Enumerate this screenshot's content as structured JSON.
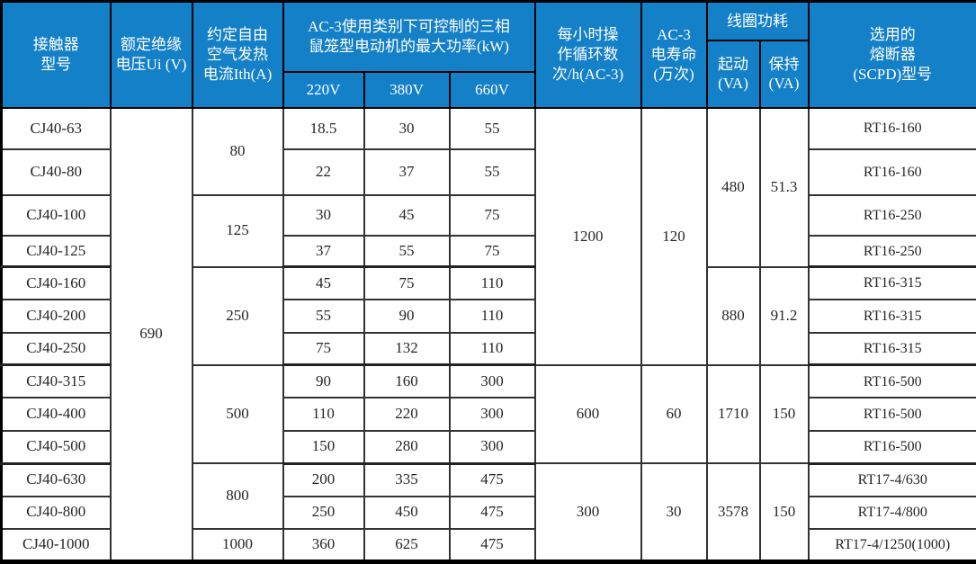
{
  "colors": {
    "header_bg": "#1480c8",
    "header_text": "#ffffff",
    "body_text": "#262626",
    "border": "#333333"
  },
  "header": {
    "model": "接触器\n型号",
    "insulation_voltage": "额定绝缘\n电压Ui (V)",
    "thermal_current": "约定自由\n空气发热\n电流Ith(A)",
    "ac3_power": "AC-3使用类别下可控制的三相\n鼠笼型电动机的最大功率(kW)",
    "v220": "220V",
    "v380": "380V",
    "v660": "660V",
    "cycles": "每小时操\n作循环数\n次/h(AC-3)",
    "life": "AC-3\n电寿命\n(万次)",
    "coil": "线圈功耗",
    "coil_start": "起动\n(VA)",
    "coil_hold": "保持\n(VA)",
    "fuse": "选用的\n熔断器\n(SCPD)型号"
  },
  "insulation_voltage_value": "690",
  "ith_groups": [
    "80",
    "125",
    "250",
    "500",
    "800",
    "1000"
  ],
  "cycles_groups": [
    "1200",
    "600",
    "300"
  ],
  "life_groups": [
    "120",
    "60",
    "30"
  ],
  "start_groups": [
    "480",
    "880",
    "1710",
    "3578"
  ],
  "hold_groups": [
    "51.3",
    "91.2",
    "150",
    "150"
  ],
  "rows": [
    {
      "model": "CJ40-63",
      "p220": "18.5",
      "p380": "30",
      "p660": "55",
      "fuse": "RT16-160"
    },
    {
      "model": "CJ40-80",
      "p220": "22",
      "p380": "37",
      "p660": "55",
      "fuse": "RT16-160"
    },
    {
      "model": "CJ40-100",
      "p220": "30",
      "p380": "45",
      "p660": "75",
      "fuse": "RT16-250"
    },
    {
      "model": "CJ40-125",
      "p220": "37",
      "p380": "55",
      "p660": "75",
      "fuse": "RT16-250"
    },
    {
      "model": "CJ40-160",
      "p220": "45",
      "p380": "75",
      "p660": "110",
      "fuse": "RT16-315"
    },
    {
      "model": "CJ40-200",
      "p220": "55",
      "p380": "90",
      "p660": "110",
      "fuse": "RT16-315"
    },
    {
      "model": "CJ40-250",
      "p220": "75",
      "p380": "132",
      "p660": "110",
      "fuse": "RT16-315"
    },
    {
      "model": "CJ40-315",
      "p220": "90",
      "p380": "160",
      "p660": "300",
      "fuse": "RT16-500"
    },
    {
      "model": "CJ40-400",
      "p220": "110",
      "p380": "220",
      "p660": "300",
      "fuse": "RT16-500"
    },
    {
      "model": "CJ40-500",
      "p220": "150",
      "p380": "280",
      "p660": "300",
      "fuse": "RT16-500"
    },
    {
      "model": "CJ40-630",
      "p220": "200",
      "p380": "335",
      "p660": "475",
      "fuse": "RT17-4/630"
    },
    {
      "model": "CJ40-800",
      "p220": "250",
      "p380": "450",
      "p660": "475",
      "fuse": "RT17-4/800"
    },
    {
      "model": "CJ40-1000",
      "p220": "360",
      "p380": "625",
      "p660": "475",
      "fuse": "RT17-4/1250(1000)"
    }
  ],
  "chart_data": {
    "type": "table",
    "title": "",
    "columns": [
      "接触器型号",
      "额定绝缘电压Ui (V)",
      "约定自由空气发热电流Ith(A)",
      "AC-3使用类别下可控制的三相鼠笼型电动机的最大功率(kW) 220V",
      "AC-3使用类别下可控制的三相鼠笼型电动机的最大功率(kW) 380V",
      "AC-3使用类别下可控制的三相鼠笼型电动机的最大功率(kW) 660V",
      "每小时操作循环数次/h(AC-3)",
      "AC-3电寿命(万次)",
      "线圈功耗 起动(VA)",
      "线圈功耗 保持(VA)",
      "选用的熔断器(SCPD)型号"
    ],
    "rows": [
      [
        "CJ40-63",
        "690",
        "80",
        "18.5",
        "30",
        "55",
        "1200",
        "120",
        "480",
        "51.3",
        "RT16-160"
      ],
      [
        "CJ40-80",
        "690",
        "80",
        "22",
        "37",
        "55",
        "1200",
        "120",
        "480",
        "51.3",
        "RT16-160"
      ],
      [
        "CJ40-100",
        "690",
        "125",
        "30",
        "45",
        "75",
        "1200",
        "120",
        "480",
        "51.3",
        "RT16-250"
      ],
      [
        "CJ40-125",
        "690",
        "125",
        "37",
        "55",
        "75",
        "1200",
        "120",
        "480",
        "51.3",
        "RT16-250"
      ],
      [
        "CJ40-160",
        "690",
        "250",
        "45",
        "75",
        "110",
        "1200",
        "120",
        "880",
        "91.2",
        "RT16-315"
      ],
      [
        "CJ40-200",
        "690",
        "250",
        "55",
        "90",
        "110",
        "1200",
        "120",
        "880",
        "91.2",
        "RT16-315"
      ],
      [
        "CJ40-250",
        "690",
        "250",
        "75",
        "132",
        "110",
        "1200",
        "120",
        "880",
        "91.2",
        "RT16-315"
      ],
      [
        "CJ40-315",
        "690",
        "500",
        "90",
        "160",
        "300",
        "600",
        "60",
        "1710",
        "150",
        "RT16-500"
      ],
      [
        "CJ40-400",
        "690",
        "500",
        "110",
        "220",
        "300",
        "600",
        "60",
        "1710",
        "150",
        "RT16-500"
      ],
      [
        "CJ40-500",
        "690",
        "500",
        "150",
        "280",
        "300",
        "600",
        "60",
        "1710",
        "150",
        "RT16-500"
      ],
      [
        "CJ40-630",
        "690",
        "800",
        "200",
        "335",
        "475",
        "300",
        "30",
        "3578",
        "150",
        "RT17-4/630"
      ],
      [
        "CJ40-800",
        "690",
        "800",
        "250",
        "450",
        "475",
        "300",
        "30",
        "3578",
        "150",
        "RT17-4/800"
      ],
      [
        "CJ40-1000",
        "690",
        "1000",
        "360",
        "625",
        "475",
        "300",
        "30",
        "3578",
        "150",
        "RT17-4/1250(1000)"
      ]
    ],
    "layout": "merged cells: 690 spans all rows; Ith 80(r1-2),125(r3-4),250(r5-7),500(r8-10),800(r11-12),1000(r13); cycles/life 1200/120(r1-7),600/60(r8-10),300/30(r11-13); coil start/hold 480/51.3(r1-4),880/91.2(r5-7),1710/150(r8-10),3578/150(r11-13)"
  }
}
